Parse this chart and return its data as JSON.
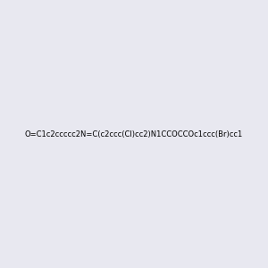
{
  "smiles": "O=C1c2ccccc2N=C(c2ccc(Cl)cc2)N1CCOCCOc1ccc(Br)cc1",
  "title": "",
  "bg_color": "#e8e8f0",
  "figsize": [
    3.0,
    3.0
  ],
  "dpi": 100,
  "atom_colors": {
    "N": "#0000ff",
    "O": "#ff0000",
    "Cl": "#00cc00",
    "Br": "#cc6600",
    "C": "#000000"
  }
}
